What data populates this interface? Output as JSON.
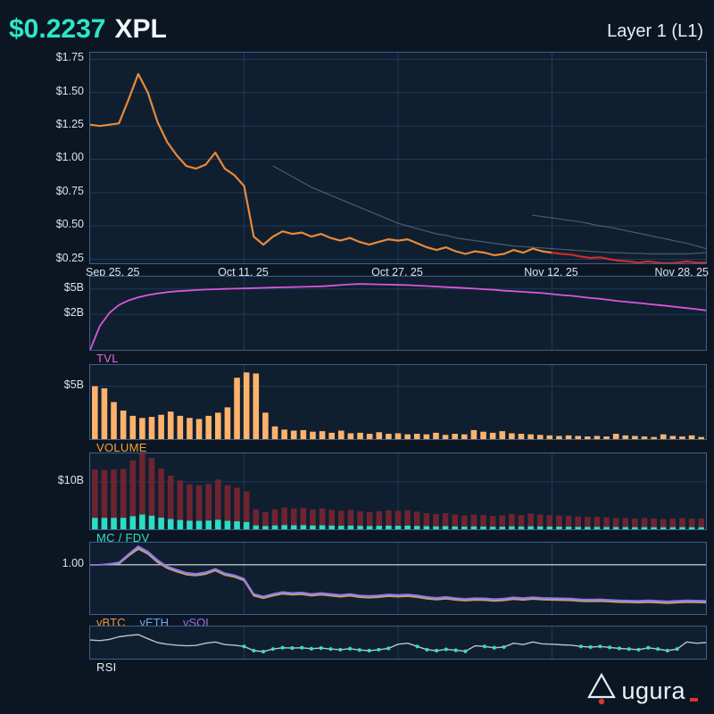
{
  "header": {
    "price": "$0.2237",
    "symbol": "XPL",
    "network": "Layer 1 (L1)"
  },
  "footer": {
    "brand": "Augura",
    "brand_text": "ugura"
  },
  "colors": {
    "background": "#0c1623",
    "panel_bg": "#0f1f30",
    "panel_border": "#3d6088",
    "grid": "#1d3a5a",
    "tick_text": "#d9e2ea",
    "accent_teal": "#2fe5c9",
    "logo_red": "#d7372f"
  },
  "chart_data": [
    {
      "name": "price",
      "type": "line",
      "x_tick_labels": [
        "Sep 25, 25",
        "Oct 11, 25",
        "Oct 27, 25",
        "Nov 12, 25",
        "Nov 28, 25"
      ],
      "ylim": [
        0.22,
        1.8
      ],
      "y_ticks": [
        0.25,
        0.5,
        0.75,
        1.0,
        1.25,
        1.5,
        1.75
      ],
      "y_tick_labels": [
        "$0.25",
        "$0.50",
        "$0.75",
        "$1.00",
        "$1.25",
        "$1.50",
        "$1.75"
      ],
      "grid": true,
      "legend_position": "none",
      "series": [
        {
          "name": "XPL-price",
          "color": "#e8893c",
          "width": 2.2,
          "x_range": [
            0,
            0.75
          ],
          "values": [
            1.26,
            1.25,
            1.26,
            1.27,
            1.45,
            1.64,
            1.5,
            1.28,
            1.13,
            1.03,
            0.95,
            0.93,
            0.96,
            1.05,
            0.93,
            0.88,
            0.8,
            0.42,
            0.36,
            0.42,
            0.46,
            0.44,
            0.45,
            0.42,
            0.44,
            0.41,
            0.39,
            0.41,
            0.38,
            0.36,
            0.38,
            0.4,
            0.39,
            0.4,
            0.37,
            0.34,
            0.32,
            0.34,
            0.31,
            0.29,
            0.31,
            0.3,
            0.28,
            0.29,
            0.32,
            0.3,
            0.33,
            0.31,
            0.3
          ]
        },
        {
          "name": "XPL-price-recent",
          "color": "#cf2b2b",
          "width": 2.2,
          "x_range": [
            0.75,
            1
          ],
          "values": [
            0.3,
            0.29,
            0.285,
            0.27,
            0.26,
            0.265,
            0.25,
            0.24,
            0.235,
            0.225,
            0.235,
            0.225,
            0.215,
            0.225,
            0.235,
            0.225,
            0.2237
          ]
        },
        {
          "name": "ghost-trend-1",
          "color": "#8b98a6",
          "width": 1.2,
          "opacity": 0.5,
          "x_range": [
            0.297,
            1
          ],
          "values": [
            0.95,
            0.91,
            0.87,
            0.83,
            0.79,
            0.76,
            0.73,
            0.7,
            0.67,
            0.64,
            0.61,
            0.58,
            0.55,
            0.52,
            0.5,
            0.48,
            0.46,
            0.44,
            0.43,
            0.41,
            0.4,
            0.39,
            0.38,
            0.37,
            0.36,
            0.35,
            0.345,
            0.34,
            0.335,
            0.33,
            0.325,
            0.32,
            0.315,
            0.31,
            0.305,
            0.3,
            0.3,
            0.295,
            0.295,
            0.29,
            0.29,
            0.29,
            0.29,
            0.29,
            0.295,
            0.3
          ]
        },
        {
          "name": "ghost-trend-2",
          "color": "#8b98a6",
          "width": 1.2,
          "opacity": 0.5,
          "x_range": [
            0.719,
            1
          ],
          "values": [
            0.58,
            0.57,
            0.56,
            0.55,
            0.54,
            0.53,
            0.515,
            0.5,
            0.49,
            0.475,
            0.46,
            0.445,
            0.43,
            0.415,
            0.4,
            0.385,
            0.37,
            0.35,
            0.33
          ]
        }
      ]
    },
    {
      "name": "tvl",
      "type": "line",
      "label": "TVL",
      "label_color": "#df66df",
      "scale": "log",
      "ylim": [
        0.55,
        7.8
      ],
      "y_ticks": [
        5,
        2
      ],
      "y_tick_labels": [
        "$5B",
        "$2B"
      ],
      "series": [
        {
          "name": "TVL",
          "color": "#d957d9",
          "width": 1.8,
          "values": [
            0.55,
            1.3,
            2.1,
            2.8,
            3.3,
            3.7,
            4.0,
            4.25,
            4.45,
            4.6,
            4.7,
            4.8,
            4.9,
            4.95,
            5.0,
            5.05,
            5.1,
            5.15,
            5.2,
            5.25,
            5.3,
            5.35,
            5.4,
            5.45,
            5.5,
            5.6,
            5.75,
            5.9,
            6.0,
            5.95,
            5.9,
            5.85,
            5.8,
            5.75,
            5.65,
            5.55,
            5.45,
            5.35,
            5.25,
            5.15,
            5.05,
            4.95,
            4.85,
            4.7,
            4.6,
            4.5,
            4.4,
            4.3,
            4.15,
            4.0,
            3.9,
            3.75,
            3.6,
            3.5,
            3.35,
            3.2,
            3.1,
            3.0,
            2.9,
            2.8,
            2.7,
            2.6,
            2.5,
            2.4,
            2.3
          ]
        }
      ]
    },
    {
      "name": "volume",
      "type": "bar",
      "label": "VOLUME",
      "label_color": "#f5a237",
      "ylim": [
        0,
        7
      ],
      "y_ticks": [
        5
      ],
      "y_tick_labels": [
        "$5B"
      ],
      "series": [
        {
          "name": "Volume",
          "color": "#ffb26b",
          "values": [
            5.0,
            4.8,
            3.5,
            2.7,
            2.2,
            2.0,
            2.1,
            2.3,
            2.6,
            2.2,
            2.0,
            1.9,
            2.2,
            2.5,
            3.0,
            5.8,
            6.3,
            6.2,
            2.5,
            1.2,
            0.9,
            0.8,
            0.85,
            0.7,
            0.75,
            0.6,
            0.8,
            0.55,
            0.6,
            0.5,
            0.65,
            0.5,
            0.55,
            0.45,
            0.5,
            0.45,
            0.6,
            0.4,
            0.5,
            0.45,
            0.85,
            0.7,
            0.6,
            0.75,
            0.55,
            0.5,
            0.45,
            0.4,
            0.35,
            0.3,
            0.35,
            0.3,
            0.25,
            0.3,
            0.25,
            0.5,
            0.35,
            0.3,
            0.25,
            0.2,
            0.45,
            0.3,
            0.25,
            0.35,
            0.2
          ]
        }
      ]
    },
    {
      "name": "mc_fdv",
      "type": "bar",
      "label": "MC / FDV",
      "label_color": "#2fe0c5",
      "ylim": [
        0,
        16
      ],
      "y_ticks": [
        10
      ],
      "y_tick_labels": [
        "$10B"
      ],
      "series": [
        {
          "name": "FDV",
          "color": "#6e2430",
          "values": [
            12.6,
            12.5,
            12.6,
            12.7,
            14.5,
            16.4,
            15.0,
            12.8,
            11.3,
            10.3,
            9.5,
            9.3,
            9.6,
            10.5,
            9.3,
            8.8,
            8.0,
            4.2,
            3.6,
            4.2,
            4.6,
            4.4,
            4.5,
            4.2,
            4.4,
            4.1,
            3.9,
            4.1,
            3.8,
            3.6,
            3.8,
            4.0,
            3.9,
            4.0,
            3.7,
            3.4,
            3.2,
            3.4,
            3.1,
            2.9,
            3.1,
            3.0,
            2.8,
            2.9,
            3.2,
            3.0,
            3.3,
            3.1,
            3.0,
            2.9,
            2.85,
            2.7,
            2.6,
            2.65,
            2.5,
            2.4,
            2.35,
            2.25,
            2.35,
            2.25,
            2.15,
            2.25,
            2.35,
            2.25,
            2.24
          ]
        },
        {
          "name": "MC",
          "color": "#29dec3",
          "values": [
            2.4,
            2.4,
            2.4,
            2.4,
            2.75,
            3.1,
            2.85,
            2.45,
            2.15,
            1.95,
            1.8,
            1.77,
            1.82,
            2.0,
            1.77,
            1.67,
            1.52,
            0.8,
            0.68,
            0.8,
            0.87,
            0.84,
            0.86,
            0.8,
            0.84,
            0.78,
            0.74,
            0.78,
            0.72,
            0.68,
            0.72,
            0.76,
            0.74,
            0.76,
            0.7,
            0.65,
            0.61,
            0.65,
            0.59,
            0.55,
            0.59,
            0.57,
            0.53,
            0.55,
            0.61,
            0.57,
            0.63,
            0.59,
            0.57,
            0.55,
            0.54,
            0.51,
            0.49,
            0.5,
            0.48,
            0.46,
            0.45,
            0.43,
            0.45,
            0.43,
            0.41,
            0.43,
            0.45,
            0.43,
            0.42
          ]
        }
      ]
    },
    {
      "name": "ratios",
      "type": "line",
      "labels": [
        {
          "text": "vBTC",
          "color": "#e8973c"
        },
        {
          "text": "vETH",
          "color": "#6fa8ee"
        },
        {
          "text": "vSOL",
          "color": "#a36de0"
        }
      ],
      "ylim": [
        0,
        1.45
      ],
      "y_ticks": [
        1.0
      ],
      "y_tick_labels": [
        "1.00"
      ],
      "ref_line": 1.0,
      "series": [
        {
          "name": "vBTC",
          "color": "#e8973c",
          "width": 1.6,
          "values": [
            1.0,
            1.0,
            1.01,
            1.02,
            1.18,
            1.32,
            1.22,
            1.05,
            0.93,
            0.86,
            0.8,
            0.78,
            0.81,
            0.88,
            0.79,
            0.75,
            0.68,
            0.37,
            0.32,
            0.37,
            0.41,
            0.39,
            0.4,
            0.37,
            0.39,
            0.37,
            0.35,
            0.37,
            0.34,
            0.33,
            0.34,
            0.36,
            0.35,
            0.36,
            0.34,
            0.31,
            0.29,
            0.31,
            0.285,
            0.27,
            0.285,
            0.28,
            0.265,
            0.275,
            0.3,
            0.285,
            0.305,
            0.29,
            0.285,
            0.28,
            0.275,
            0.26,
            0.255,
            0.26,
            0.25,
            0.24,
            0.235,
            0.23,
            0.24,
            0.23,
            0.22,
            0.23,
            0.24,
            0.235,
            0.23
          ]
        },
        {
          "name": "vETH",
          "color": "#6fa8ee",
          "width": 1.6,
          "values": [
            1.0,
            1.0,
            1.01,
            1.03,
            1.2,
            1.35,
            1.24,
            1.07,
            0.95,
            0.88,
            0.82,
            0.8,
            0.83,
            0.9,
            0.81,
            0.77,
            0.7,
            0.39,
            0.34,
            0.39,
            0.43,
            0.41,
            0.42,
            0.39,
            0.41,
            0.39,
            0.37,
            0.39,
            0.36,
            0.35,
            0.36,
            0.38,
            0.37,
            0.38,
            0.36,
            0.33,
            0.31,
            0.33,
            0.305,
            0.29,
            0.305,
            0.3,
            0.285,
            0.295,
            0.32,
            0.305,
            0.325,
            0.31,
            0.305,
            0.3,
            0.295,
            0.28,
            0.275,
            0.28,
            0.27,
            0.26,
            0.255,
            0.25,
            0.26,
            0.25,
            0.24,
            0.25,
            0.26,
            0.255,
            0.25
          ]
        },
        {
          "name": "vSOL",
          "color": "#a36de0",
          "width": 1.6,
          "values": [
            1.0,
            1.0,
            1.02,
            1.05,
            1.22,
            1.38,
            1.27,
            1.1,
            0.97,
            0.9,
            0.84,
            0.82,
            0.85,
            0.92,
            0.83,
            0.79,
            0.72,
            0.41,
            0.36,
            0.41,
            0.45,
            0.43,
            0.44,
            0.41,
            0.43,
            0.41,
            0.39,
            0.41,
            0.38,
            0.37,
            0.38,
            0.4,
            0.39,
            0.4,
            0.38,
            0.35,
            0.33,
            0.35,
            0.325,
            0.31,
            0.325,
            0.32,
            0.305,
            0.315,
            0.34,
            0.325,
            0.345,
            0.33,
            0.325,
            0.32,
            0.315,
            0.3,
            0.295,
            0.3,
            0.29,
            0.28,
            0.275,
            0.27,
            0.28,
            0.27,
            0.26,
            0.27,
            0.28,
            0.275,
            0.27
          ]
        }
      ]
    },
    {
      "name": "rsi",
      "type": "line",
      "label": "RSI",
      "label_color": "#e8eef4",
      "ylim": [
        0,
        100
      ],
      "series": [
        {
          "name": "RSI",
          "color": "#b9c2ca",
          "width": 1.4,
          "dot_below": 40,
          "dot_color": "#35ddc9",
          "values": [
            58,
            56,
            60,
            68,
            72,
            75,
            62,
            50,
            45,
            42,
            40,
            41,
            48,
            52,
            44,
            42,
            38,
            25,
            22,
            30,
            34,
            33,
            34,
            31,
            33,
            30,
            28,
            31,
            27,
            25,
            28,
            32,
            45,
            48,
            38,
            28,
            25,
            29,
            26,
            23,
            40,
            38,
            34,
            36,
            48,
            44,
            52,
            46,
            45,
            43,
            42,
            38,
            36,
            38,
            35,
            32,
            30,
            28,
            34,
            30,
            25,
            30,
            52,
            48,
            50
          ]
        }
      ]
    }
  ]
}
